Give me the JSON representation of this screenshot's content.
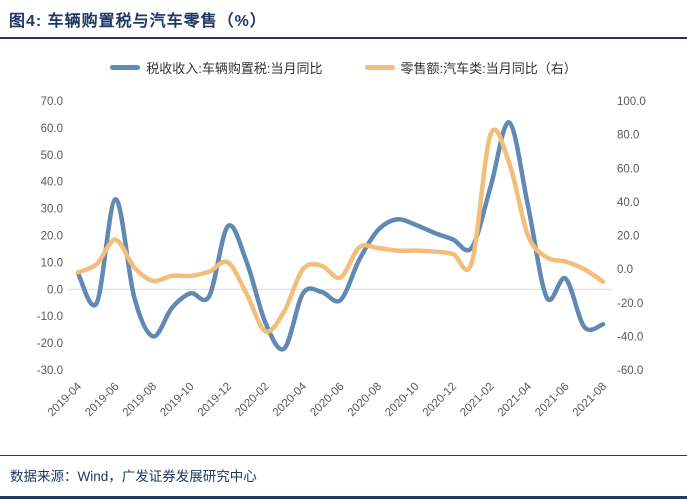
{
  "header": {
    "title": "图4:  车辆购置税与汽车零售（%）"
  },
  "legend": [
    {
      "label": "税收收入:车辆购置税:当月同比",
      "color": "#6089b4"
    },
    {
      "label": "零售额:汽车类:当月同比（右）",
      "color": "#f2be79"
    }
  ],
  "colors": {
    "tax_line": "#6089b4",
    "retail_line": "#f2be79",
    "axis_text": "#595959",
    "gridline": "#d9d9d9",
    "accent_navy": "#1f3864"
  },
  "chart_data": {
    "type": "line",
    "title": "车辆购置税与汽车零售（%）",
    "x": [
      "2019-04",
      "2019-05",
      "2019-06",
      "2019-07",
      "2019-08",
      "2019-09",
      "2019-10",
      "2019-11",
      "2019-12",
      "2020-01",
      "2020-02",
      "2020-03",
      "2020-04",
      "2020-05",
      "2020-06",
      "2020-07",
      "2020-08",
      "2020-09",
      "2020-10",
      "2020-11",
      "2020-12",
      "2021-01",
      "2021-02",
      "2021-03",
      "2021-04",
      "2021-05",
      "2021-06",
      "2021-07",
      "2021-08"
    ],
    "x_tick_labels": [
      "2019-04",
      "2019-06",
      "2019-08",
      "2019-10",
      "2019-12",
      "2020-02",
      "2020-04",
      "2020-06",
      "2020-08",
      "2020-10",
      "2020-12",
      "2021-02",
      "2021-04",
      "2021-06",
      "2021-08"
    ],
    "series": [
      {
        "name": "税收收入:车辆购置税:当月同比",
        "axis": "left",
        "color": "#6089b4",
        "values": [
          6,
          -5,
          33.5,
          -3,
          -17.5,
          -7,
          -1.5,
          -2.5,
          23.5,
          10,
          -12.5,
          -22,
          -1.5,
          -1,
          -4,
          11,
          22,
          26,
          24,
          21,
          18.5,
          15.5,
          38,
          62,
          31,
          -3,
          4,
          -14,
          -13
        ]
      },
      {
        "name": "零售额:汽车类:当月同比（右）",
        "axis": "right",
        "color": "#f2be79",
        "values": [
          -2,
          3,
          17.5,
          1,
          -7,
          -4,
          -4,
          -1.5,
          4,
          -15,
          -37,
          -25,
          0,
          2,
          -5,
          13,
          12.5,
          11,
          11,
          10.5,
          9,
          4,
          80,
          63,
          20,
          7,
          4.5,
          0,
          -7.5
        ]
      }
    ],
    "left_axis": {
      "min": -30,
      "max": 70,
      "step": 10,
      "labels": [
        "70.0",
        "60.0",
        "50.0",
        "40.0",
        "30.0",
        "20.0",
        "10.0",
        "0.0",
        "-10.0",
        "-20.0",
        "-30.0"
      ]
    },
    "right_axis": {
      "min": -60,
      "max": 100,
      "step": 20,
      "labels": [
        "100.0",
        "80.0",
        "60.0",
        "40.0",
        "20.0",
        "0.0",
        "-20.0",
        "-40.0",
        "-60.0"
      ]
    },
    "gridline_at_left_value": 0,
    "legend_position": "top",
    "grid": "zero-line-only"
  },
  "footer": {
    "source": "数据来源：Wind，广发证券发展研究中心"
  }
}
